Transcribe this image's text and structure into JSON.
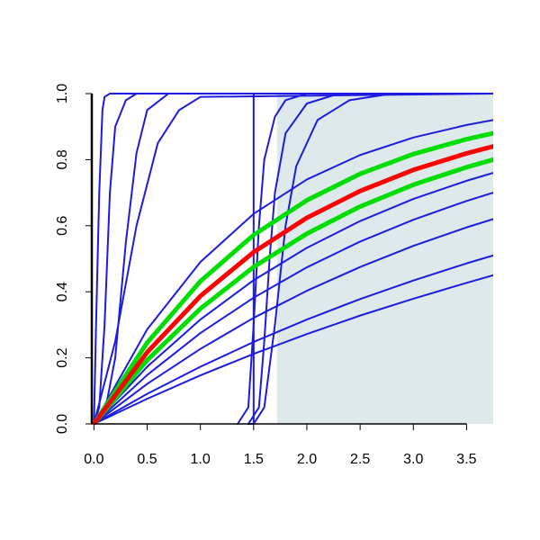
{
  "chart_data": {
    "type": "line",
    "xlim": [
      -0.02,
      3.75
    ],
    "ylim": [
      0,
      1
    ],
    "xticks": [
      {
        "value": 0,
        "label": "0.0"
      },
      0.5,
      {
        "value": 1,
        "label": "1.0"
      },
      1.5,
      {
        "value": 2,
        "label": "2.0"
      },
      2.5,
      {
        "value": 3,
        "label": "3.0"
      },
      3.5
    ],
    "yticks": [
      {
        "value": 0,
        "label": "0.0"
      },
      0.2,
      0.4,
      0.6,
      0.8,
      {
        "value": 1,
        "label": "1.0"
      }
    ],
    "shaded_region": {
      "xlim": [
        1.72,
        3.75
      ],
      "ylim": [
        0,
        1
      ],
      "color": "#dde9ea"
    },
    "series": [
      {
        "color": "#1c1ce0",
        "linewidth": 2,
        "x": [
          0,
          0.5,
          1,
          1.5,
          2,
          2.5,
          3,
          3.5,
          3.75
        ],
        "values": [
          0,
          0.286,
          0.49,
          0.636,
          0.74,
          0.814,
          0.867,
          0.905,
          0.92
        ]
      },
      {
        "color": "#1c1ce0",
        "linewidth": 2,
        "x": [
          0,
          0.5,
          1,
          1.5,
          2,
          2.5,
          3,
          3.5,
          3.75
        ],
        "values": [
          0,
          0.173,
          0.316,
          0.435,
          0.533,
          0.614,
          0.681,
          0.736,
          0.76
        ]
      },
      {
        "color": "#1c1ce0",
        "linewidth": 2,
        "x": [
          0,
          0.5,
          1,
          1.5,
          2,
          2.5,
          3,
          3.5,
          3.75
        ],
        "values": [
          0,
          0.148,
          0.275,
          0.382,
          0.474,
          0.552,
          0.618,
          0.675,
          0.7
        ]
      },
      {
        "color": "#1c1ce0",
        "linewidth": 2,
        "x": [
          0,
          0.5,
          1,
          1.5,
          2,
          2.5,
          3,
          3.5,
          3.75
        ],
        "values": [
          0,
          0.121,
          0.227,
          0.321,
          0.403,
          0.475,
          0.539,
          0.595,
          0.62
        ]
      },
      {
        "color": "#1c1ce0",
        "linewidth": 2,
        "x": [
          0,
          0.5,
          1,
          1.5,
          2,
          2.5,
          3,
          3.5,
          3.75
        ],
        "values": [
          0,
          0.091,
          0.173,
          0.248,
          0.316,
          0.378,
          0.434,
          0.486,
          0.51
        ]
      },
      {
        "color": "#1c1ce0",
        "linewidth": 2,
        "x": [
          0,
          0.5,
          1,
          1.5,
          2,
          2.5,
          3,
          3.5,
          3.75
        ],
        "values": [
          0,
          0.076,
          0.147,
          0.212,
          0.272,
          0.328,
          0.379,
          0.427,
          0.45
        ]
      },
      {
        "color": "#1c1ce0",
        "linewidth": 2,
        "x": [
          0,
          0.02,
          0.05,
          0.08,
          0.1,
          0.15,
          3.75
        ],
        "values": [
          0,
          0.3,
          0.7,
          0.95,
          0.99,
          1,
          1
        ]
      },
      {
        "color": "#1c1ce0",
        "linewidth": 2,
        "x": [
          0,
          0.05,
          0.1,
          0.15,
          0.2,
          0.3,
          0.4,
          3.75
        ],
        "values": [
          0,
          0.05,
          0.3,
          0.7,
          0.9,
          0.98,
          1,
          1
        ]
      },
      {
        "color": "#1c1ce0",
        "linewidth": 2,
        "x": [
          0,
          0.1,
          0.2,
          0.3,
          0.4,
          0.5,
          0.7,
          3.75
        ],
        "values": [
          0,
          0.03,
          0.2,
          0.55,
          0.82,
          0.95,
          1,
          1
        ]
      },
      {
        "color": "#1c1ce0",
        "linewidth": 2,
        "x": [
          0,
          0.2,
          0.4,
          0.6,
          0.8,
          1,
          3.75
        ],
        "values": [
          0,
          0.25,
          0.6,
          0.85,
          0.95,
          0.99,
          1
        ]
      },
      {
        "color": "#1c1ce0",
        "linewidth": 2,
        "x": [
          1.45,
          1.5,
          1.5,
          3.75
        ],
        "values": [
          0,
          0,
          1,
          1
        ]
      },
      {
        "color": "#1c1ce0",
        "linewidth": 2,
        "x": [
          1.35,
          1.45,
          1.5,
          1.55,
          1.6,
          1.7,
          1.8,
          2,
          3.75
        ],
        "values": [
          0,
          0.05,
          0.3,
          0.6,
          0.8,
          0.93,
          0.98,
          1,
          1
        ]
      },
      {
        "color": "#1c1ce0",
        "linewidth": 2,
        "x": [
          1.45,
          1.55,
          1.6,
          1.65,
          1.7,
          1.8,
          2,
          2.3,
          3.75
        ],
        "values": [
          0,
          0.05,
          0.25,
          0.5,
          0.7,
          0.88,
          0.97,
          1,
          1
        ]
      },
      {
        "color": "#1c1ce0",
        "linewidth": 2,
        "x": [
          1.5,
          1.6,
          1.7,
          1.8,
          1.9,
          2.1,
          2.4,
          2.8,
          3.75
        ],
        "values": [
          0,
          0.05,
          0.3,
          0.6,
          0.78,
          0.92,
          0.98,
          1,
          1
        ]
      },
      {
        "color": "#00dd00",
        "linewidth": 5,
        "x": [
          0,
          0.5,
          1,
          1.5,
          2,
          2.5,
          3,
          3.5,
          3.75
        ],
        "values": [
          0,
          0.246,
          0.432,
          0.572,
          0.677,
          0.757,
          0.817,
          0.862,
          0.88
        ]
      },
      {
        "color": "#00dd00",
        "linewidth": 5,
        "x": [
          0,
          0.5,
          1,
          1.5,
          2,
          2.5,
          3,
          3.5,
          3.75
        ],
        "values": [
          0,
          0.193,
          0.349,
          0.475,
          0.576,
          0.658,
          0.724,
          0.777,
          0.8
        ]
      },
      {
        "color": "#ff0000",
        "linewidth": 5,
        "x": [
          0,
          0.5,
          1,
          1.5,
          2,
          2.5,
          3,
          3.5,
          3.75
        ],
        "values": [
          0,
          0.217,
          0.387,
          0.52,
          0.624,
          0.705,
          0.769,
          0.819,
          0.84
        ]
      }
    ]
  }
}
